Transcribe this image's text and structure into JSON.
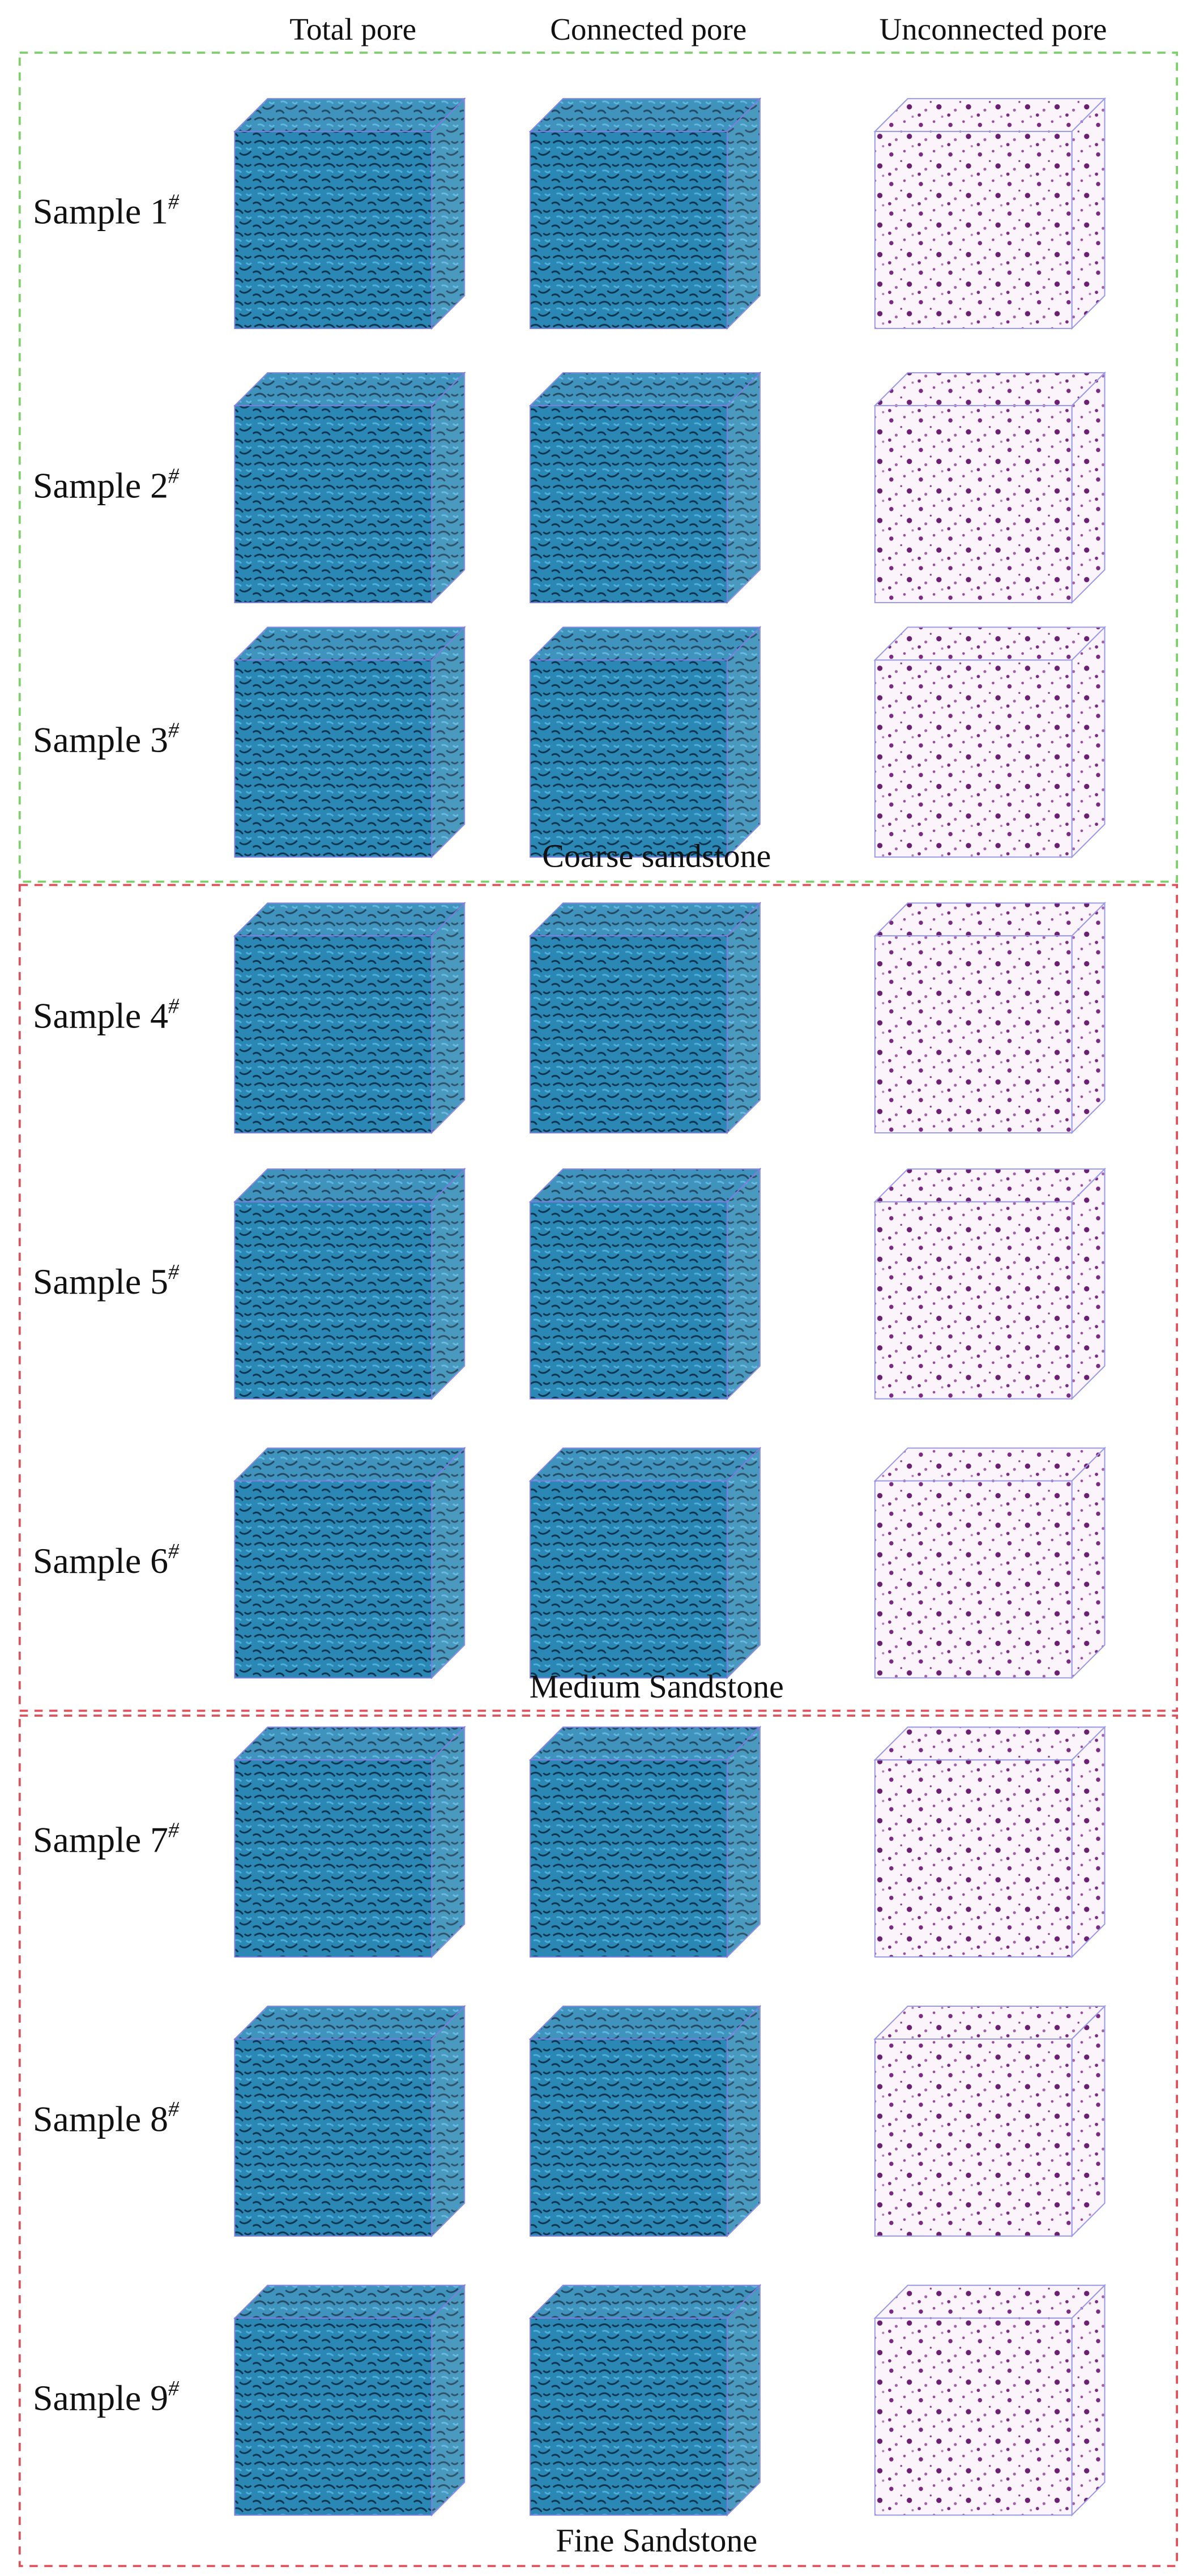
{
  "columns": [
    "Total pore",
    "Connected pore",
    "Unconnected pore"
  ],
  "groups": [
    {
      "label": "Coarse sandstone",
      "rows": [
        {
          "label": "Sample 1",
          "sup": "#"
        },
        {
          "label": "Sample 2",
          "sup": "#"
        },
        {
          "label": "Sample 3",
          "sup": "#"
        }
      ]
    },
    {
      "label": "Medium Sandstone",
      "rows": [
        {
          "label": "Sample 4",
          "sup": "#"
        },
        {
          "label": "Sample 5",
          "sup": "#"
        },
        {
          "label": "Sample 6",
          "sup": "#"
        }
      ]
    },
    {
      "label": "Fine Sandstone",
      "rows": [
        {
          "label": "Sample 7",
          "sup": "#"
        },
        {
          "label": "Sample 8",
          "sup": "#"
        },
        {
          "label": "Sample 9",
          "sup": "#"
        }
      ]
    }
  ]
}
